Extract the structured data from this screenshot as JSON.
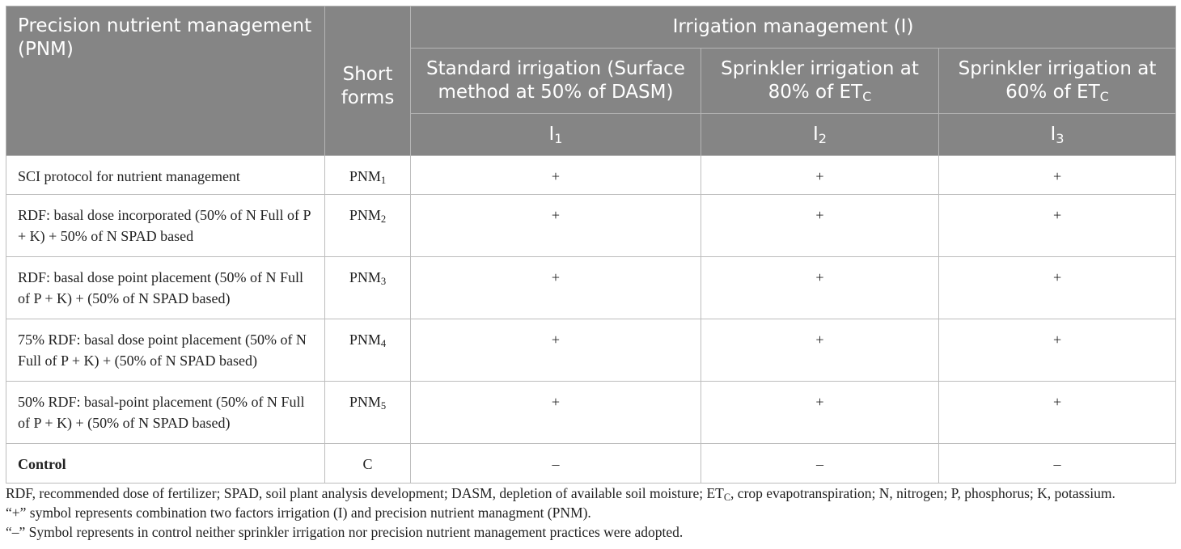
{
  "header": {
    "pnm": "Precision nutrient management (PNM)",
    "short_forms": "Short forms",
    "irrigation": "Irrigation management (I)",
    "i1_desc": "Standard irrigation (Surface method at 50% of DASM)",
    "i2_desc_pre": "Sprinkler irrigation at 80% of ET",
    "i2_desc_sub": "C",
    "i3_desc_pre": "Sprinkler irrigation at 60% of ET",
    "i3_desc_sub": "C",
    "i1": "I",
    "i1_sub": "1",
    "i2": "I",
    "i2_sub": "2",
    "i3": "I",
    "i3_sub": "3"
  },
  "rows": [
    {
      "desc": "SCI protocol for nutrient management",
      "short": "PNM",
      "short_sub": "1",
      "i1": "+",
      "i2": "+",
      "i3": "+"
    },
    {
      "desc": "RDF: basal dose incorporated (50% of N Full of P + K) + 50% of N SPAD based",
      "short": "PNM",
      "short_sub": "2",
      "i1": "+",
      "i2": "+",
      "i3": "+"
    },
    {
      "desc": "RDF: basal dose point placement (50% of N Full of P + K) + (50% of N SPAD based)",
      "short": "PNM",
      "short_sub": "3",
      "i1": "+",
      "i2": "+",
      "i3": "+"
    },
    {
      "desc": "75% RDF: basal dose point placement (50% of N Full of P + K) + (50% of N SPAD based)",
      "short": "PNM",
      "short_sub": "4",
      "i1": "+",
      "i2": "+",
      "i3": "+"
    },
    {
      "desc": "50% RDF: basal-point placement (50% of N Full of P + K) + (50% of N SPAD based)",
      "short": "PNM",
      "short_sub": "5",
      "i1": "+",
      "i2": "+",
      "i3": "+"
    },
    {
      "desc": "Control",
      "short": "C",
      "i1": "–",
      "i2": "–",
      "i3": "–"
    }
  ],
  "notes": {
    "abbr_pre": "RDF, recommended dose of fertilizer; SPAD, soil plant analysis development; DASM, depletion of available soil moisture; ET",
    "abbr_sub": "C",
    "abbr_post": ", crop evapotranspiration; N, nitrogen; P, phosphorus; K, potassium.",
    "plus": "“+” symbol represents combination  two factors irrigation (I) and precision nutrient managment (PNM).",
    "minus": "“–” Symbol represents  in control neither sprinkler irrigation nor precision nutrient management practices were adopted."
  }
}
